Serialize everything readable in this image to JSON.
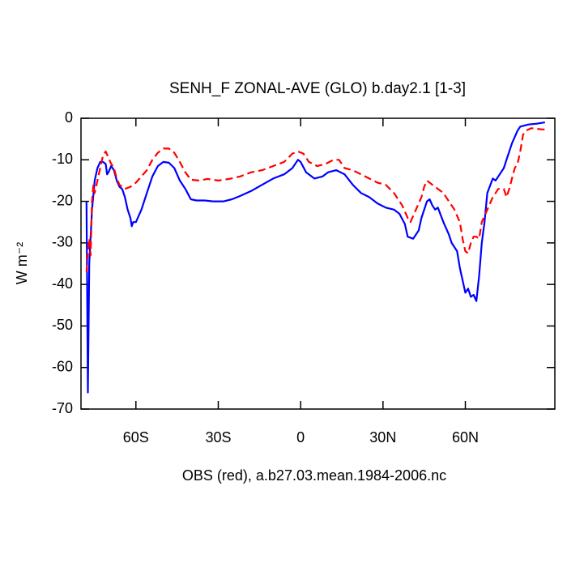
{
  "chart_data": {
    "type": "line",
    "title": "SENH_F ZONAL-AVE (GLO) b.day2.1 [1-3]",
    "xlabel": "OBS (red), a.b27.03.mean.1984-2006.nc",
    "ylabel": "W m⁻²",
    "xlim": [
      -80,
      92.6
    ],
    "ylim": [
      -70,
      0
    ],
    "xticks": [
      {
        "value": -60,
        "label": "60S"
      },
      {
        "value": -30,
        "label": "30S"
      },
      0,
      {
        "value": 30,
        "label": "30N"
      },
      {
        "value": 60,
        "label": "60N"
      }
    ],
    "yticks": [
      0,
      -10,
      -20,
      -30,
      -40,
      -50,
      -60,
      -70
    ],
    "series": [
      {
        "color": "#0000ff",
        "dashed": false,
        "x": [
          -78,
          -77.5,
          -77,
          -76,
          -75,
          -74,
          -73,
          -72,
          -71,
          -70.5,
          -70,
          -69,
          -68,
          -67,
          -66,
          -65,
          -64,
          -63,
          -62,
          -61.5,
          -61,
          -60,
          -58,
          -56,
          -54,
          -52,
          -50,
          -48,
          -46,
          -44,
          -42,
          -40,
          -38,
          -35,
          -32,
          -28,
          -25,
          -22,
          -18,
          -14,
          -10,
          -6,
          -3,
          -1,
          0,
          2,
          5,
          8,
          10,
          13,
          16,
          19,
          22,
          25,
          28,
          31,
          34,
          36,
          38,
          39,
          41,
          43,
          44,
          46,
          47,
          48,
          49,
          50,
          52,
          54,
          55,
          57,
          58,
          59,
          60,
          61,
          62,
          63,
          64,
          65,
          66,
          67,
          68,
          70,
          71,
          72,
          74,
          75,
          77,
          79,
          80,
          83,
          86,
          89
        ],
        "values": [
          -20,
          -66,
          -35,
          -22,
          -15,
          -12,
          -10.5,
          -10.5,
          -11,
          -13.5,
          -13,
          -11.5,
          -12.5,
          -15,
          -16.5,
          -17,
          -19,
          -22,
          -24,
          -26,
          -25,
          -25,
          -22,
          -18,
          -14,
          -11.5,
          -10.5,
          -10.7,
          -12,
          -15,
          -17,
          -19.5,
          -19.8,
          -19.8,
          -20,
          -20,
          -19.5,
          -18.7,
          -17.5,
          -16,
          -14.5,
          -13.5,
          -12,
          -10,
          -10.5,
          -13,
          -14.5,
          -14,
          -13,
          -12.5,
          -13.5,
          -16,
          -18,
          -19,
          -20.5,
          -21.5,
          -22,
          -23,
          -25.5,
          -28.5,
          -29,
          -27,
          -24,
          -20,
          -19.5,
          -21,
          -22,
          -21.5,
          -25,
          -28,
          -30,
          -32,
          -36,
          -39,
          -42,
          -41,
          -43,
          -42.5,
          -44,
          -38,
          -30,
          -25,
          -18,
          -14.5,
          -15,
          -14,
          -12,
          -10,
          -6,
          -3,
          -2,
          -1.5,
          -1.3,
          -1
        ]
      },
      {
        "color": "#ff0000",
        "dashed": true,
        "x": [
          -78,
          -77.5,
          -77,
          -76.5,
          -76,
          -75.5,
          -75,
          -74,
          -73,
          -72,
          -71,
          -70,
          -69,
          -68,
          -67,
          -66,
          -65,
          -64,
          -62,
          -60,
          -58,
          -56,
          -54,
          -52,
          -50,
          -48,
          -46,
          -44,
          -42,
          -40,
          -37,
          -34,
          -30,
          -26,
          -22,
          -18,
          -14,
          -10,
          -6,
          -3,
          -1,
          1,
          3,
          6,
          9,
          12,
          14,
          16,
          19,
          22,
          25,
          28,
          31,
          34,
          37,
          39,
          40,
          42,
          44,
          45,
          46,
          48,
          50,
          52,
          54,
          56,
          58,
          59,
          60,
          61,
          62,
          63,
          64,
          65,
          66,
          68,
          70,
          72,
          74,
          75,
          76,
          78,
          79,
          80,
          81,
          82,
          84,
          88,
          90
        ],
        "values": [
          -37,
          -32,
          -29,
          -33,
          -20,
          -16,
          -18,
          -15,
          -12,
          -9,
          -8,
          -9.5,
          -11,
          -12,
          -14.5,
          -16,
          -16.5,
          -17,
          -16.5,
          -15.5,
          -14,
          -12.5,
          -10,
          -8.3,
          -7.3,
          -7.3,
          -8.3,
          -10.5,
          -13,
          -14.8,
          -15,
          -14.6,
          -15,
          -14.6,
          -14,
          -13,
          -12.5,
          -11.5,
          -10.5,
          -8.5,
          -8,
          -8.5,
          -10.5,
          -11.5,
          -11,
          -10,
          -10,
          -12,
          -12.5,
          -13.5,
          -14.5,
          -15.5,
          -16,
          -18,
          -21,
          -24,
          -25,
          -22,
          -19,
          -16.5,
          -15,
          -16,
          -17,
          -18,
          -20,
          -22,
          -25,
          -29,
          -32,
          -32.5,
          -30,
          -28.5,
          -28.5,
          -29,
          -25,
          -22,
          -19,
          -17,
          -17,
          -19,
          -17,
          -12,
          -11,
          -8,
          -4,
          -3,
          -2.4,
          -2.7,
          -2.7
        ]
      }
    ]
  }
}
